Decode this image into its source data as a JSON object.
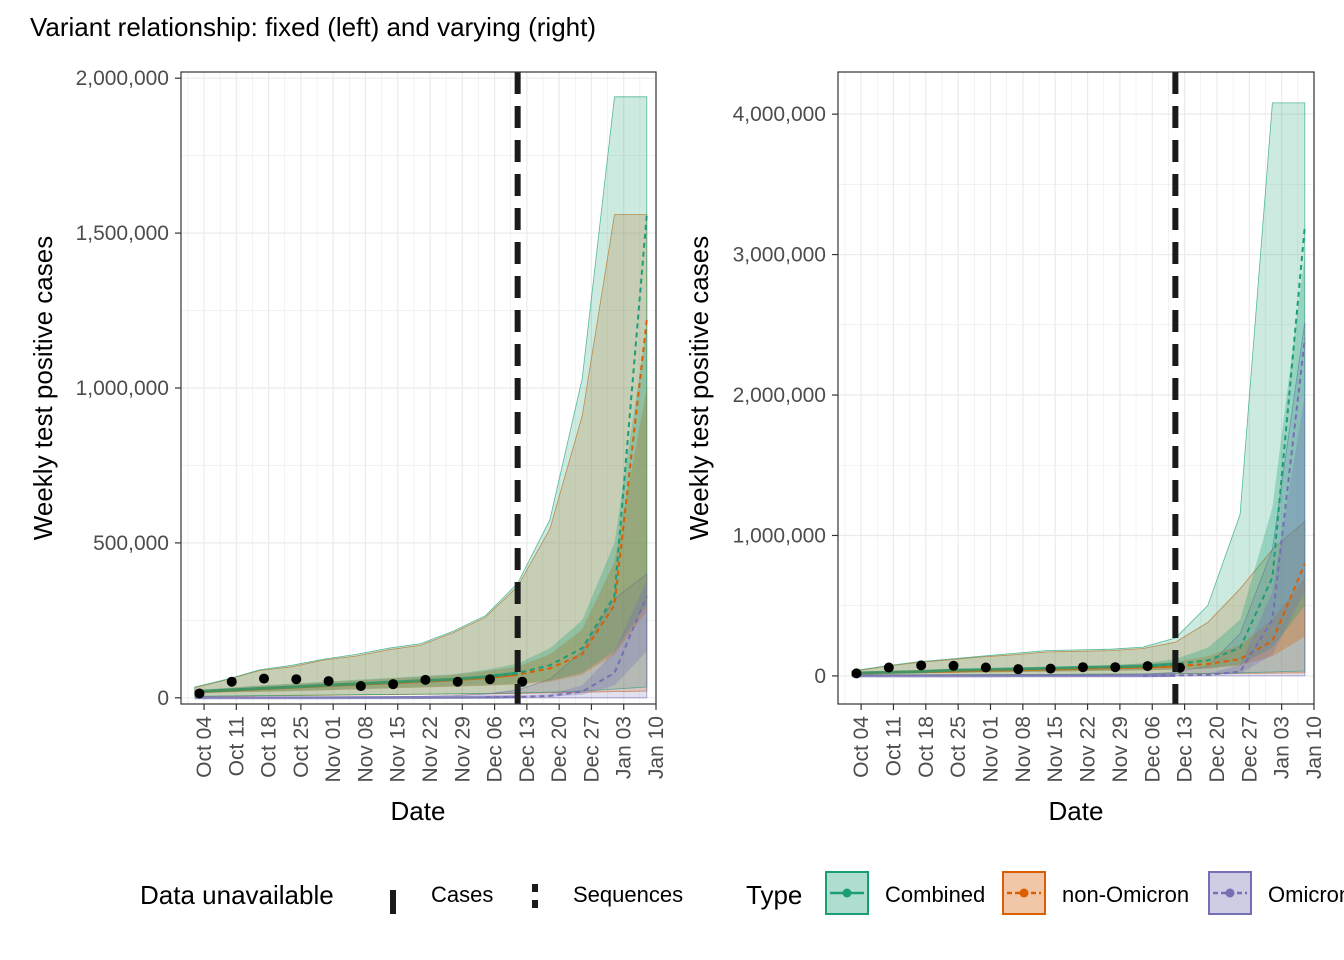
{
  "title": "Variant relationship: fixed (left) and varying (right)",
  "colors": {
    "combined": "#1b9e77",
    "non_omicron": "#d95f02",
    "omicron": "#7570b3",
    "points": "#000000",
    "cutoff_line": "#1a1a1a"
  },
  "x_tick_labels": [
    "Oct 04",
    "Oct 11",
    "Oct 18",
    "Oct 25",
    "Nov 01",
    "Nov 08",
    "Nov 15",
    "Nov 22",
    "Nov 29",
    "Dec 06",
    "Dec 13",
    "Dec 20",
    "Dec 27",
    "Jan 03",
    "Jan 10"
  ],
  "legend": {
    "data_unavailable_title": "Data unavailable",
    "cases_label": "Cases",
    "sequences_label": "Sequences",
    "type_title": "Type",
    "type_items": [
      {
        "key": "combined",
        "label": "Combined",
        "fill_icon": "combined-swatch-icon"
      },
      {
        "key": "non_omicron",
        "label": "non-Omicron",
        "fill_icon": "non-omicron-swatch-icon"
      },
      {
        "key": "omicron",
        "label": "Omicron",
        "fill_icon": "omicron-swatch-icon"
      }
    ]
  },
  "chart_data": [
    {
      "type": "area",
      "xlabel": "Date",
      "ylabel": "Weekly test positive cases",
      "ylim": [
        -20000,
        2020000
      ],
      "yticks": [
        0,
        500000,
        1000000,
        1500000,
        2000000
      ],
      "ytick_labels": [
        "0",
        "500,000",
        "1,000,000",
        "1,500,000",
        "2,000,000"
      ],
      "xlim_days": [
        -5,
        98
      ],
      "x_tick_labels": [
        "Oct 04",
        "Oct 11",
        "Oct 18",
        "Oct 25",
        "Nov 01",
        "Nov 08",
        "Nov 15",
        "Nov 22",
        "Nov 29",
        "Dec 06",
        "Dec 13",
        "Dec 20",
        "Dec 27",
        "Jan 03",
        "Jan 10"
      ],
      "cases_unavailable_from": "Dec 11",
      "series": [
        {
          "name": "Combined",
          "key": "combined",
          "x": [
            "Oct 02",
            "Oct 09",
            "Oct 16",
            "Oct 23",
            "Oct 30",
            "Nov 06",
            "Nov 13",
            "Nov 20",
            "Nov 27",
            "Dec 04",
            "Dec 11",
            "Dec 18",
            "Dec 25",
            "Jan 01",
            "Jan 08"
          ],
          "median": [
            20000,
            25000,
            30000,
            35000,
            40000,
            45000,
            50000,
            55000,
            60000,
            68000,
            80000,
            105000,
            160000,
            330000,
            1560000
          ],
          "outer_lower": [
            5000,
            6000,
            7000,
            8000,
            9000,
            10000,
            11000,
            12000,
            13000,
            14000,
            16000,
            18000,
            22000,
            28000,
            35000
          ],
          "outer_upper": [
            35000,
            60000,
            90000,
            105000,
            125000,
            140000,
            160000,
            175000,
            215000,
            265000,
            370000,
            575000,
            1030000,
            1940000,
            1940000
          ],
          "inner_lower": [
            15000,
            18000,
            20000,
            22000,
            25000,
            28000,
            31000,
            34000,
            37000,
            40000,
            45000,
            55000,
            80000,
            150000,
            300000
          ],
          "inner_upper": [
            25000,
            32000,
            40000,
            46000,
            52000,
            58000,
            64000,
            70000,
            76000,
            90000,
            110000,
            160000,
            250000,
            500000,
            1200000
          ]
        },
        {
          "name": "non-Omicron",
          "key": "non_omicron",
          "x": [
            "Oct 02",
            "Oct 09",
            "Oct 16",
            "Oct 23",
            "Oct 30",
            "Nov 06",
            "Nov 13",
            "Nov 20",
            "Nov 27",
            "Dec 04",
            "Dec 11",
            "Dec 18",
            "Dec 25",
            "Jan 01",
            "Jan 08"
          ],
          "median": [
            19000,
            24000,
            29000,
            34000,
            39000,
            44000,
            48000,
            53000,
            58000,
            65000,
            75000,
            95000,
            140000,
            300000,
            1220000
          ],
          "outer_lower": [
            4000,
            5000,
            6000,
            7000,
            8000,
            9000,
            10000,
            11000,
            12000,
            13000,
            14000,
            16000,
            18000,
            20000,
            22000
          ],
          "outer_upper": [
            33000,
            58000,
            88000,
            100000,
            122000,
            135000,
            155000,
            170000,
            210000,
            260000,
            360000,
            545000,
            910000,
            1560000,
            1560000
          ],
          "inner_lower": [
            14000,
            17000,
            19000,
            21000,
            24000,
            27000,
            30000,
            33000,
            36000,
            39000,
            43000,
            52000,
            75000,
            140000,
            280000
          ],
          "inner_upper": [
            24000,
            31000,
            38000,
            44000,
            50000,
            56000,
            62000,
            68000,
            74000,
            86000,
            100000,
            140000,
            220000,
            440000,
            1000000
          ]
        },
        {
          "name": "Omicron",
          "key": "omicron",
          "x": [
            "Oct 02",
            "Oct 09",
            "Oct 16",
            "Oct 23",
            "Oct 30",
            "Nov 06",
            "Nov 13",
            "Nov 20",
            "Nov 27",
            "Dec 04",
            "Dec 11",
            "Dec 18",
            "Dec 25",
            "Jan 01",
            "Jan 08"
          ],
          "median": [
            100,
            150,
            200,
            300,
            400,
            500,
            700,
            900,
            1200,
            1800,
            3000,
            6000,
            20000,
            80000,
            330000
          ],
          "outer_lower": [
            0,
            0,
            0,
            0,
            0,
            0,
            0,
            0,
            0,
            0,
            0,
            0,
            0,
            0,
            0
          ],
          "outer_upper": [
            500,
            800,
            1000,
            1500,
            2000,
            2500,
            3500,
            5000,
            7000,
            12000,
            25000,
            60000,
            150000,
            320000,
            400000
          ],
          "inner_lower": [
            50,
            80,
            100,
            150,
            200,
            250,
            350,
            450,
            600,
            900,
            1500,
            3000,
            10000,
            40000,
            150000
          ],
          "inner_upper": [
            200,
            300,
            400,
            600,
            800,
            1000,
            1400,
            1800,
            2400,
            3600,
            6000,
            12000,
            40000,
            150000,
            380000
          ]
        }
      ],
      "cases": {
        "x": [
          "Oct 03",
          "Oct 10",
          "Oct 17",
          "Oct 24",
          "Oct 31",
          "Nov 07",
          "Nov 14",
          "Nov 21",
          "Nov 28",
          "Dec 05",
          "Dec 12"
        ],
        "y": [
          14000,
          52000,
          62000,
          60000,
          54000,
          38000,
          44000,
          58000,
          52000,
          60000,
          52000
        ]
      }
    },
    {
      "type": "area",
      "xlabel": "Date",
      "ylabel": "Weekly test positive cases",
      "ylim": [
        -200000,
        4300000
      ],
      "yticks": [
        0,
        1000000,
        2000000,
        3000000,
        4000000
      ],
      "ytick_labels": [
        "0",
        "1,000,000",
        "2,000,000",
        "3,000,000",
        "4,000,000"
      ],
      "xlim_days": [
        -5,
        98
      ],
      "x_tick_labels": [
        "Oct 04",
        "Oct 11",
        "Oct 18",
        "Oct 25",
        "Nov 01",
        "Nov 08",
        "Nov 15",
        "Nov 22",
        "Nov 29",
        "Dec 06",
        "Dec 13",
        "Dec 20",
        "Dec 27",
        "Jan 03",
        "Jan 10"
      ],
      "cases_unavailable_from": "Dec 11",
      "series": [
        {
          "name": "Combined",
          "key": "combined",
          "x": [
            "Oct 02",
            "Oct 09",
            "Oct 16",
            "Oct 23",
            "Oct 30",
            "Nov 06",
            "Nov 13",
            "Nov 20",
            "Nov 27",
            "Dec 04",
            "Dec 11",
            "Dec 18",
            "Dec 25",
            "Jan 01",
            "Jan 08"
          ],
          "median": [
            20000,
            25000,
            30000,
            40000,
            45000,
            50000,
            55000,
            60000,
            65000,
            70000,
            85000,
            110000,
            200000,
            700000,
            3200000
          ],
          "outer_lower": [
            5000,
            6000,
            7000,
            8000,
            9000,
            10000,
            11000,
            12000,
            13000,
            14000,
            16000,
            18000,
            22000,
            28000,
            35000
          ],
          "outer_upper": [
            35000,
            70000,
            100000,
            120000,
            140000,
            160000,
            180000,
            185000,
            190000,
            205000,
            270000,
            500000,
            1150000,
            4080000,
            4080000
          ],
          "inner_lower": [
            15000,
            18000,
            20000,
            22000,
            25000,
            28000,
            31000,
            34000,
            37000,
            40000,
            45000,
            55000,
            80000,
            200000,
            500000
          ],
          "inner_upper": [
            25000,
            32000,
            40000,
            46000,
            52000,
            58000,
            64000,
            70000,
            76000,
            90000,
            120000,
            200000,
            400000,
            1200000,
            3000000
          ]
        },
        {
          "name": "non-Omicron",
          "key": "non_omicron",
          "x": [
            "Oct 02",
            "Oct 09",
            "Oct 16",
            "Oct 23",
            "Oct 30",
            "Nov 06",
            "Nov 13",
            "Nov 20",
            "Nov 27",
            "Dec 04",
            "Dec 11",
            "Dec 18",
            "Dec 25",
            "Jan 01",
            "Jan 08"
          ],
          "median": [
            19000,
            24000,
            29000,
            34000,
            39000,
            44000,
            48000,
            53000,
            58000,
            62000,
            70000,
            85000,
            120000,
            250000,
            800000
          ],
          "outer_lower": [
            4000,
            5000,
            6000,
            7000,
            8000,
            9000,
            10000,
            11000,
            12000,
            13000,
            14000,
            16000,
            18000,
            20000,
            22000
          ],
          "outer_upper": [
            33000,
            66000,
            95000,
            115000,
            135000,
            150000,
            170000,
            175000,
            180000,
            195000,
            240000,
            380000,
            620000,
            900000,
            1100000
          ],
          "inner_lower": [
            14000,
            17000,
            19000,
            21000,
            24000,
            27000,
            30000,
            33000,
            36000,
            39000,
            43000,
            52000,
            75000,
            140000,
            280000
          ],
          "inner_upper": [
            24000,
            31000,
            38000,
            44000,
            50000,
            56000,
            62000,
            68000,
            74000,
            86000,
            100000,
            140000,
            220000,
            400000,
            700000
          ]
        },
        {
          "name": "Omicron",
          "key": "omicron",
          "x": [
            "Oct 02",
            "Oct 09",
            "Oct 16",
            "Oct 23",
            "Oct 30",
            "Nov 06",
            "Nov 13",
            "Nov 20",
            "Nov 27",
            "Dec 04",
            "Dec 11",
            "Dec 18",
            "Dec 25",
            "Jan 01",
            "Jan 08"
          ],
          "median": [
            100,
            150,
            200,
            300,
            400,
            500,
            700,
            900,
            1200,
            1800,
            3000,
            8000,
            30000,
            400000,
            2400000
          ],
          "outer_lower": [
            0,
            0,
            0,
            0,
            0,
            0,
            0,
            0,
            0,
            0,
            0,
            0,
            0,
            0,
            0
          ],
          "outer_upper": [
            500,
            800,
            1000,
            1500,
            2000,
            2500,
            3500,
            5000,
            7000,
            12000,
            25000,
            70000,
            300000,
            900000,
            2520000
          ],
          "inner_lower": [
            50,
            80,
            100,
            150,
            200,
            250,
            350,
            450,
            600,
            900,
            1500,
            3000,
            15000,
            150000,
            600000
          ],
          "inner_upper": [
            200,
            300,
            400,
            600,
            800,
            1000,
            1400,
            1800,
            2400,
            3600,
            6000,
            15000,
            80000,
            600000,
            2000000
          ]
        }
      ],
      "cases": {
        "x": [
          "Oct 03",
          "Oct 10",
          "Oct 17",
          "Oct 24",
          "Oct 31",
          "Nov 07",
          "Nov 14",
          "Nov 21",
          "Nov 28",
          "Dec 05",
          "Dec 12"
        ],
        "y": [
          18000,
          60000,
          75000,
          72000,
          60000,
          48000,
          52000,
          62000,
          62000,
          70000,
          58000
        ]
      }
    }
  ]
}
